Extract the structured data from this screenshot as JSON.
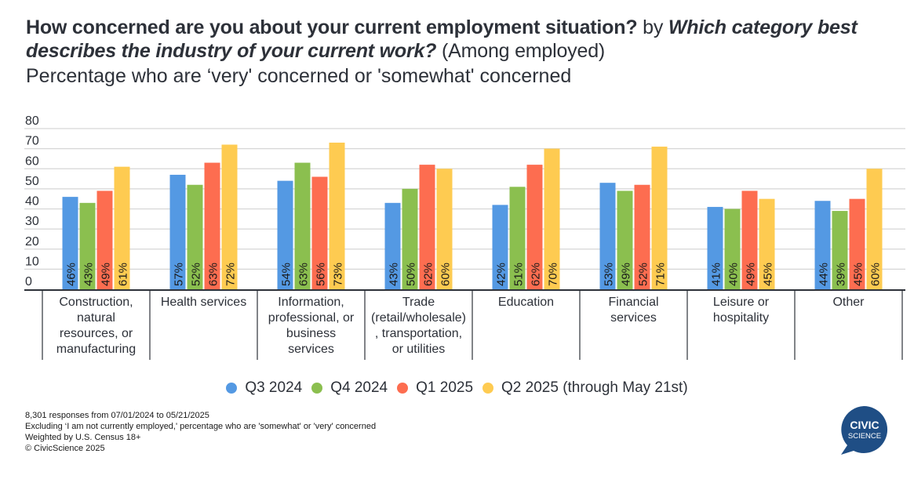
{
  "title": {
    "question": "How concerned are you about your current employment situation?",
    "by": " by ",
    "segment": "Which category best describes the industry of your current work?",
    "qualifier": " (Among employed)"
  },
  "subtitle": "Percentage who are ‘very' concerned or 'somewhat' concerned",
  "chart_data": {
    "type": "bar",
    "title": "How concerned are you about your current employment situation? by Which category best describes the industry of your current work? (Among employed)",
    "subtitle": "Percentage who are ‘very' concerned or 'somewhat' concerned",
    "xlabel": "",
    "ylabel": "",
    "ylim": [
      0,
      80
    ],
    "yticks": [
      0,
      10,
      20,
      30,
      40,
      50,
      60,
      70,
      80
    ],
    "grid": true,
    "legend_position": "bottom",
    "categories": [
      [
        "Construction,",
        "natural",
        "resources, or",
        "manufacturing"
      ],
      [
        "Health services"
      ],
      [
        "Information,",
        "professional, or",
        "business",
        "services"
      ],
      [
        "Trade",
        "(retail/wholesale)",
        ", transportation,",
        "or utilities"
      ],
      [
        "Education"
      ],
      [
        "Financial",
        "services"
      ],
      [
        "Leisure or",
        "hospitality"
      ],
      [
        "Other"
      ]
    ],
    "series": [
      {
        "name": "Q3 2024",
        "color": "#5499e3",
        "values": [
          46,
          57,
          54,
          43,
          42,
          53,
          41,
          44
        ]
      },
      {
        "name": "Q4 2024",
        "color": "#8bbf4f",
        "values": [
          43,
          52,
          63,
          50,
          51,
          49,
          40,
          39
        ]
      },
      {
        "name": "Q1 2025",
        "color": "#fd6d50",
        "values": [
          49,
          63,
          56,
          62,
          62,
          52,
          49,
          45
        ]
      },
      {
        "name": "Q2 2025 (through May 21st)",
        "color": "#fecb51",
        "values": [
          61,
          72,
          73,
          60,
          70,
          71,
          45,
          60
        ]
      }
    ],
    "value_label_suffix": "%"
  },
  "footnotes": [
    "8,301 responses from 07/01/2024 to 05/21/2025",
    "Excluding ‘I am not currently employed,' percentage who are 'somewhat' or 'very' concerned",
    "Weighted by U.S. Census 18+",
    "© CivicScience 2025"
  ],
  "logo": {
    "line1": "CIVIC",
    "line2": "SCIENCE",
    "color": "#1f4e85"
  }
}
